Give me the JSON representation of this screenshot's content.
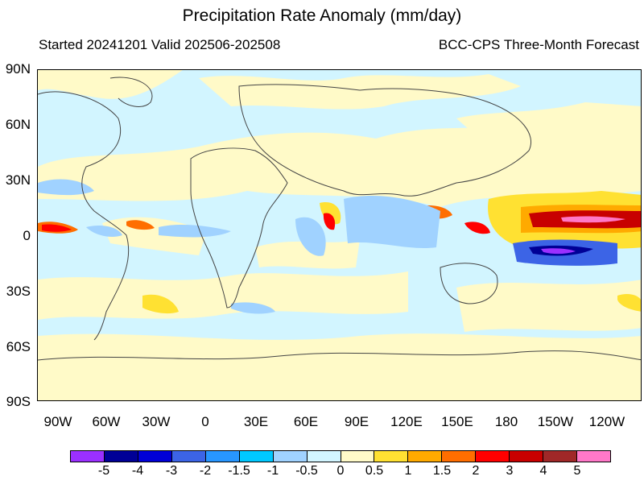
{
  "title": "Precipitation Rate Anomaly (mm/day)",
  "subtitle_left": "Started 20241201  Valid 202506-202508",
  "subtitle_right": "BCC-CPS Three-Month Forecast",
  "lat_labels": [
    "90N",
    "60N",
    "30N",
    "0",
    "30S",
    "60S",
    "90S"
  ],
  "lon_labels": [
    "90W",
    "60W",
    "30W",
    "0",
    "30E",
    "60E",
    "90E",
    "120E",
    "150E",
    "180",
    "150W",
    "120W"
  ],
  "colorbar": {
    "colors": [
      "#9b30ff",
      "#000096",
      "#0000d7",
      "#3c64e6",
      "#2896ff",
      "#00c8ff",
      "#a0d2ff",
      "#d2f5ff",
      "#fffac8",
      "#ffe132",
      "#ffaa00",
      "#ff6e00",
      "#ff0000",
      "#c80000",
      "#a02828",
      "#ff78c8"
    ],
    "labels": [
      "-5",
      "-4",
      "-3",
      "-2",
      "-1.5",
      "-1",
      "-0.5",
      "0",
      "0.5",
      "1",
      "1.5",
      "2",
      "3",
      "4",
      "5"
    ]
  }
}
